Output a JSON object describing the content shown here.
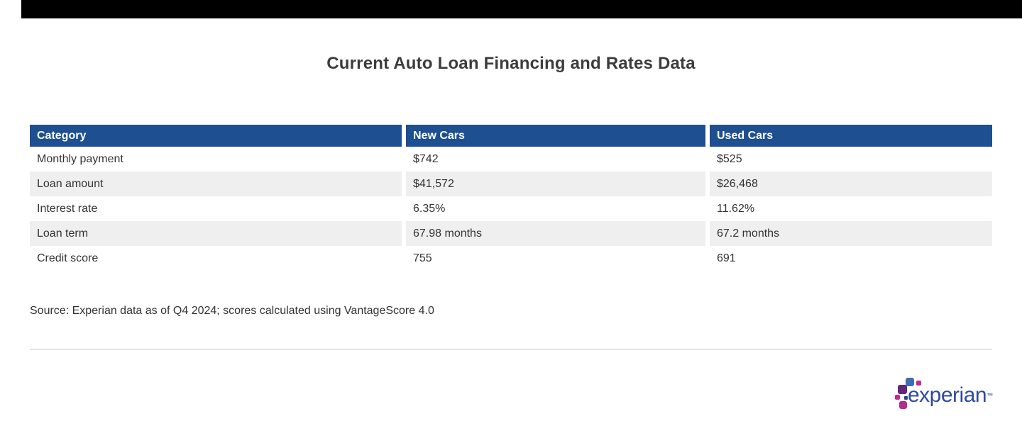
{
  "page": {
    "title": "Current Auto Loan Financing and Rates Data",
    "source_note": "Source: Experian data as of Q4 2024; scores calculated using VantageScore 4.0"
  },
  "colors": {
    "top_bar": "#000000",
    "header_blue": "#1d4f91",
    "stripe_gray": "#efefef",
    "title_text": "#3c3c3c",
    "body_text": "#333333",
    "divider_gray": "#e4e4e4",
    "logo_wordmark_blue": "#2f4a9e",
    "logo_square_blue": "#406eb3",
    "logo_square_purple": "#632678",
    "logo_square_magenta": "#c12b8c",
    "logo_square_crimson": "#b32d80"
  },
  "table": {
    "columns": [
      "Category",
      "New Cars",
      "Used Cars"
    ],
    "rows": [
      [
        "Monthly payment",
        "$742",
        "$525"
      ],
      [
        "Loan amount",
        "$41,572",
        "$26,468"
      ],
      [
        "Interest rate",
        "6.35%",
        "11.62%"
      ],
      [
        "Loan term",
        "67.98 months",
        "67.2 months"
      ],
      [
        "Credit score",
        "755",
        "691"
      ]
    ]
  },
  "chart_data": {
    "type": "table",
    "title": "Current Auto Loan Financing and Rates Data",
    "columns": [
      "Category",
      "New Cars",
      "Used Cars"
    ],
    "rows": [
      {
        "category": "Monthly payment",
        "new_cars": "$742",
        "used_cars": "$525"
      },
      {
        "category": "Loan amount",
        "new_cars": "$41,572",
        "used_cars": "$26,468"
      },
      {
        "category": "Interest rate",
        "new_cars": "6.35%",
        "used_cars": "11.62%"
      },
      {
        "category": "Loan term",
        "new_cars": "67.98 months",
        "used_cars": "67.2 months"
      },
      {
        "category": "Credit score",
        "new_cars": "755",
        "used_cars": "691"
      }
    ],
    "source": "Source: Experian data as of Q4 2024; scores calculated using VantageScore 4.0"
  },
  "logo": {
    "wordmark": "experian",
    "trademark": "™"
  }
}
